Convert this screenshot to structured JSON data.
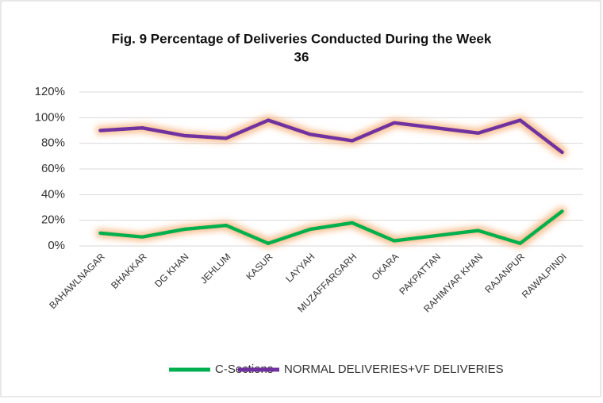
{
  "chart_data": {
    "type": "line",
    "title": [
      "Fig. 9 Percentage of Deliveries Conducted During the Week",
      "36"
    ],
    "categories": [
      "BAHAWLNAGAR",
      "BHAKKAR",
      "DG KHAN",
      "JEHLUM",
      "KASUR",
      "LAYYAH",
      "MUZAFFARGARH",
      "OKARA",
      "PAKPATTAN",
      "RAHIMYAR KHAN",
      "RAJANPUR",
      "RAWALPINDI"
    ],
    "series": [
      {
        "name": "C-Sections",
        "color": "#00b050",
        "values": [
          10,
          7,
          13,
          16,
          2,
          13,
          18,
          4,
          8,
          12,
          2,
          27
        ]
      },
      {
        "name": "NORMAL DELIVERIES+VF DELIVERIES",
        "color": "#7030a0",
        "values": [
          90,
          92,
          86,
          84,
          98,
          87,
          82,
          96,
          92,
          88,
          98,
          73
        ]
      }
    ],
    "ylim": [
      0,
      120
    ],
    "yticks": [
      {
        "value": 0,
        "label": "0%"
      },
      {
        "value": 20,
        "label": "20%"
      },
      {
        "value": 40,
        "label": "40%"
      },
      {
        "value": 60,
        "label": "60%"
      },
      {
        "value": 80,
        "label": "80%"
      },
      {
        "value": 100,
        "label": "100%"
      },
      {
        "value": 120,
        "label": "120%"
      }
    ],
    "grid": true,
    "legend": "bottom"
  }
}
